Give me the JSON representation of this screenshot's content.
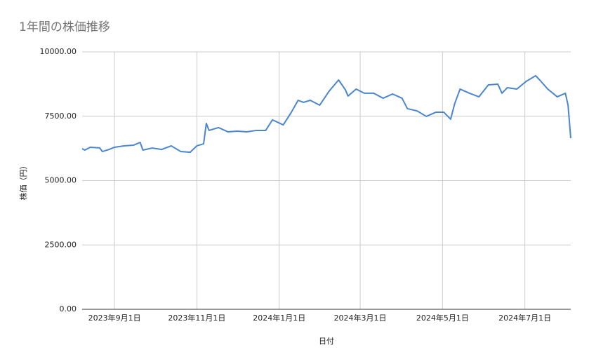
{
  "chart_data": {
    "type": "line",
    "title": "1年間の株価推移",
    "x_label": "日付",
    "y_label": "株価（円）",
    "x": [
      "2023-08-08",
      "2023-08-10",
      "2023-08-14",
      "2023-08-21",
      "2023-08-23",
      "2023-08-28",
      "2023-09-01",
      "2023-09-08",
      "2023-09-15",
      "2023-09-20",
      "2023-09-22",
      "2023-09-29",
      "2023-10-06",
      "2023-10-13",
      "2023-10-20",
      "2023-10-27",
      "2023-11-01",
      "2023-11-06",
      "2023-11-08",
      "2023-11-10",
      "2023-11-17",
      "2023-11-24",
      "2023-12-01",
      "2023-12-08",
      "2023-12-15",
      "2023-12-22",
      "2023-12-27",
      "2024-01-04",
      "2024-01-10",
      "2024-01-15",
      "2024-01-19",
      "2024-01-24",
      "2024-01-31",
      "2024-02-07",
      "2024-02-14",
      "2024-02-19",
      "2024-02-21",
      "2024-02-27",
      "2024-03-04",
      "2024-03-11",
      "2024-03-18",
      "2024-03-25",
      "2024-04-01",
      "2024-04-05",
      "2024-04-12",
      "2024-04-19",
      "2024-04-26",
      "2024-05-02",
      "2024-05-07",
      "2024-05-10",
      "2024-05-14",
      "2024-05-21",
      "2024-05-28",
      "2024-06-04",
      "2024-06-11",
      "2024-06-14",
      "2024-06-18",
      "2024-06-25",
      "2024-07-02",
      "2024-07-09",
      "2024-07-12",
      "2024-07-18",
      "2024-07-25",
      "2024-07-31",
      "2024-08-02",
      "2024-08-04"
    ],
    "series": [
      {
        "name": "株価",
        "color": "#4a86d0",
        "values": [
          6240,
          6185,
          6295,
          6270,
          6130,
          6210,
          6295,
          6350,
          6375,
          6485,
          6185,
          6265,
          6210,
          6350,
          6130,
          6100,
          6350,
          6430,
          7220,
          6950,
          7060,
          6895,
          6920,
          6895,
          6950,
          6950,
          7360,
          7165,
          7655,
          8120,
          8040,
          8120,
          7930,
          8475,
          8910,
          8530,
          8285,
          8555,
          8395,
          8395,
          8200,
          8365,
          8200,
          7795,
          7710,
          7495,
          7655,
          7655,
          7385,
          7985,
          8555,
          8395,
          8255,
          8720,
          8745,
          8395,
          8610,
          8555,
          8855,
          9075,
          8910,
          8555,
          8255,
          8395,
          7930,
          6650
        ]
      }
    ],
    "xlim": [
      "2023-08-08",
      "2024-08-04"
    ],
    "xticks": [
      {
        "value": "2023-09-01",
        "label": "2023年9月1日"
      },
      {
        "value": "2023-11-01",
        "label": "2023年11月1日"
      },
      {
        "value": "2024-01-01",
        "label": "2024年1月1日"
      },
      {
        "value": "2024-03-01",
        "label": "2024年3月1日"
      },
      {
        "value": "2024-05-01",
        "label": "2024年5月1日"
      },
      {
        "value": "2024-07-01",
        "label": "2024年7月1日"
      }
    ],
    "ylim": [
      0,
      10000
    ],
    "yticks": [
      {
        "value": 0,
        "label": "0.00"
      },
      {
        "value": 2500,
        "label": "2500.00"
      },
      {
        "value": 5000,
        "label": "5000.00"
      },
      {
        "value": 7500,
        "label": "7500.00"
      },
      {
        "value": 10000,
        "label": "10000.00"
      }
    ],
    "grid": true
  }
}
